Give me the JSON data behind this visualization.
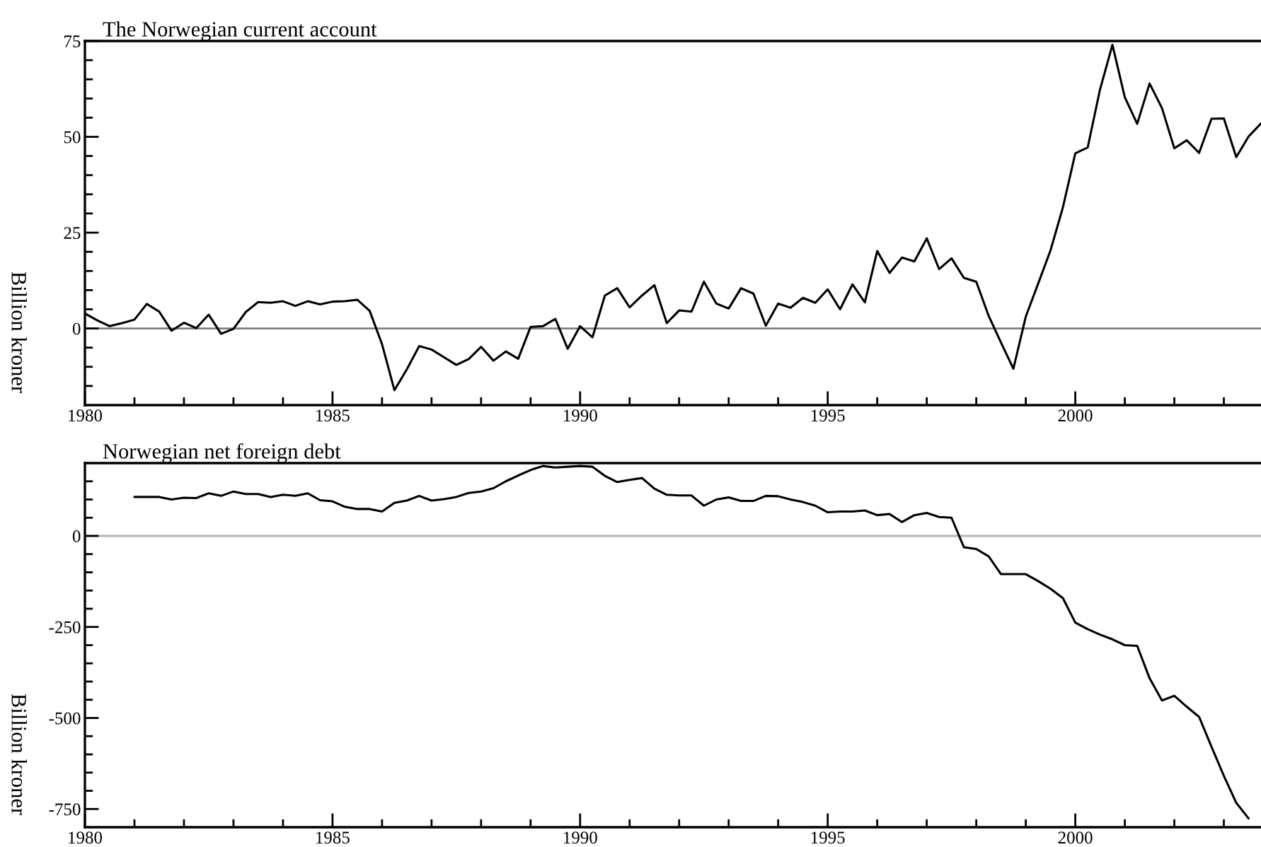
{
  "chart_data": [
    {
      "type": "line",
      "title": "The Norwegian current account",
      "ylabel": "Billion kroner",
      "x": [
        1980,
        1980.25,
        1980.5,
        1980.75,
        1981,
        1981.25,
        1981.5,
        1981.75,
        1982,
        1982.25,
        1982.5,
        1982.75,
        1983,
        1983.25,
        1983.5,
        1983.75,
        1984,
        1984.25,
        1984.5,
        1984.75,
        1985,
        1985.25,
        1985.5,
        1985.75,
        1986,
        1986.25,
        1986.5,
        1986.75,
        1987,
        1987.25,
        1987.5,
        1987.75,
        1988,
        1988.25,
        1988.5,
        1988.75,
        1989,
        1989.25,
        1989.5,
        1989.75,
        1990,
        1990.25,
        1990.5,
        1990.75,
        1991,
        1991.25,
        1991.5,
        1991.75,
        1992,
        1992.25,
        1992.5,
        1992.75,
        1993,
        1993.25,
        1993.5,
        1993.75,
        1994,
        1994.25,
        1994.5,
        1994.75,
        1995,
        1995.25,
        1995.5,
        1995.75,
        1996,
        1996.25,
        1996.5,
        1996.75,
        1997,
        1997.25,
        1997.5,
        1997.75,
        1998,
        1998.25,
        1998.5,
        1998.75,
        1999,
        1999.25,
        1999.5,
        1999.75,
        2000,
        2000.25,
        2000.5,
        2000.75,
        2001,
        2001.25,
        2001.5,
        2001.75,
        2002,
        2002.25,
        2002.5,
        2002.75,
        2003,
        2003.25,
        2003.5,
        2003.75
      ],
      "series": [
        {
          "color": "#000000",
          "values": [
            3.9,
            2.1,
            0.6,
            1.4,
            2.3,
            6.4,
            4.4,
            -0.6,
            1.5,
            0.1,
            3.6,
            -1.4,
            -0.1,
            4.3,
            6.9,
            6.7,
            7.1,
            5.9,
            7.1,
            6.3,
            7.0,
            7.1,
            7.5,
            4.6,
            -4.1,
            -16.1,
            -10.7,
            -4.6,
            -5.5,
            -7.5,
            -9.5,
            -8.0,
            -4.8,
            -8.4,
            -6.0,
            -7.9,
            0.4,
            0.6,
            2.5,
            -5.3,
            0.6,
            -2.3,
            8.6,
            10.5,
            5.5,
            8.6,
            11.3,
            1.4,
            4.7,
            4.4,
            12.2,
            6.5,
            5.2,
            10.5,
            9.1,
            0.7,
            6.5,
            5.4,
            8.0,
            6.7,
            10.2,
            5.0,
            11.5,
            6.8,
            20.2,
            14.5,
            18.5,
            17.5,
            23.5,
            15.5,
            18.3,
            13.2,
            12.2,
            3.3,
            -3.7,
            -10.5,
            3.1,
            11.7,
            20.4,
            31.6,
            45.7,
            47.2,
            62.4,
            74.0,
            60.3,
            53.4,
            63.9,
            57.5,
            47.0,
            49.1,
            45.8,
            54.7,
            54.8,
            44.7,
            50.1,
            53.5
          ]
        }
      ],
      "xlim": [
        1980,
        2003.75
      ],
      "ylim": [
        -20,
        75
      ],
      "xticks": [
        1980,
        {
          "value": 1981,
          "label": null
        },
        {
          "value": 1982,
          "label": null
        },
        {
          "value": 1983,
          "label": null
        },
        {
          "value": 1984,
          "label": null
        },
        1985,
        {
          "value": 1986,
          "label": null
        },
        {
          "value": 1987,
          "label": null
        },
        {
          "value": 1988,
          "label": null
        },
        {
          "value": 1989,
          "label": null
        },
        1990,
        {
          "value": 1991,
          "label": null
        },
        {
          "value": 1992,
          "label": null
        },
        {
          "value": 1993,
          "label": null
        },
        {
          "value": 1994,
          "label": null
        },
        1995,
        {
          "value": 1996,
          "label": null
        },
        {
          "value": 1997,
          "label": null
        },
        {
          "value": 1998,
          "label": null
        },
        {
          "value": 1999,
          "label": null
        },
        2000,
        {
          "value": 2001,
          "label": null
        },
        {
          "value": 2002,
          "label": null
        },
        {
          "value": 2003,
          "label": null
        }
      ],
      "yticks": [
        {
          "value": -15,
          "label": null
        },
        {
          "value": -10,
          "label": null
        },
        {
          "value": -5,
          "label": null
        },
        0,
        {
          "value": 5,
          "label": null
        },
        {
          "value": 10,
          "label": null
        },
        {
          "value": 15,
          "label": null
        },
        {
          "value": 20,
          "label": null
        },
        25,
        {
          "value": 30,
          "label": null
        },
        {
          "value": 35,
          "label": null
        },
        {
          "value": 40,
          "label": null
        },
        {
          "value": 45,
          "label": null
        },
        50,
        {
          "value": 55,
          "label": null
        },
        {
          "value": 60,
          "label": null
        },
        {
          "value": 65,
          "label": null
        },
        {
          "value": 70,
          "label": null
        },
        75
      ],
      "ref_lines": [
        {
          "axis": "y",
          "value": 0,
          "color": "#808080"
        }
      ]
    },
    {
      "type": "line",
      "title": "Norwegian net foreign debt",
      "ylabel": "Billion kroner",
      "x": [
        1981,
        1981.25,
        1981.5,
        1981.75,
        1982,
        1982.25,
        1982.5,
        1982.75,
        1983,
        1983.25,
        1983.5,
        1983.75,
        1984,
        1984.25,
        1984.5,
        1984.75,
        1985,
        1985.25,
        1985.5,
        1985.75,
        1986,
        1986.25,
        1986.5,
        1986.75,
        1987,
        1987.25,
        1987.5,
        1987.75,
        1988,
        1988.25,
        1988.5,
        1988.75,
        1989,
        1989.25,
        1989.5,
        1989.75,
        1990,
        1990.25,
        1990.5,
        1990.75,
        1991,
        1991.25,
        1991.5,
        1991.75,
        1992,
        1992.25,
        1992.5,
        1992.75,
        1993,
        1993.25,
        1993.5,
        1993.75,
        1994,
        1994.25,
        1994.5,
        1994.75,
        1995,
        1995.25,
        1995.5,
        1995.75,
        1996,
        1996.25,
        1996.5,
        1996.75,
        1997,
        1997.25,
        1997.5,
        1997.75,
        1998,
        1998.25,
        1998.5,
        1998.75,
        1999,
        1999.25,
        1999.5,
        1999.75,
        2000,
        2000.25,
        2000.5,
        2000.75,
        2001,
        2001.25,
        2001.5,
        2001.75,
        2002,
        2002.25,
        2002.5,
        2002.75,
        2003,
        2003.25,
        2003.5
      ],
      "series": [
        {
          "color": "#000000",
          "values": [
            107,
            107,
            107,
            100,
            105,
            104,
            117,
            110,
            122,
            115,
            115,
            107,
            113,
            110,
            117,
            98,
            95,
            80,
            74,
            74,
            67,
            91,
            97,
            110,
            97,
            101,
            107,
            118,
            122,
            131,
            150,
            166,
            181,
            192,
            188,
            190,
            192,
            190,
            165,
            148,
            154,
            159,
            130,
            113,
            111,
            111,
            83,
            100,
            106,
            96,
            96,
            110,
            109,
            100,
            93,
            83,
            65,
            67,
            67,
            70,
            57,
            60,
            38,
            57,
            63,
            52,
            50,
            -31,
            -36,
            -56,
            -105,
            -105,
            -105,
            -124,
            -145,
            -171,
            -238,
            -256,
            -271,
            -284,
            -300,
            -302,
            -391,
            -452,
            -439,
            -469,
            -497,
            -579,
            -659,
            -733,
            -776
          ]
        }
      ],
      "xlim": [
        1980,
        2003.75
      ],
      "ylim": [
        -800,
        200
      ],
      "xticks": [
        1980,
        {
          "value": 1981,
          "label": null
        },
        {
          "value": 1982,
          "label": null
        },
        {
          "value": 1983,
          "label": null
        },
        {
          "value": 1984,
          "label": null
        },
        1985,
        {
          "value": 1986,
          "label": null
        },
        {
          "value": 1987,
          "label": null
        },
        {
          "value": 1988,
          "label": null
        },
        {
          "value": 1989,
          "label": null
        },
        1990,
        {
          "value": 1991,
          "label": null
        },
        {
          "value": 1992,
          "label": null
        },
        {
          "value": 1993,
          "label": null
        },
        {
          "value": 1994,
          "label": null
        },
        1995,
        {
          "value": 1996,
          "label": null
        },
        {
          "value": 1997,
          "label": null
        },
        {
          "value": 1998,
          "label": null
        },
        {
          "value": 1999,
          "label": null
        },
        2000,
        {
          "value": 2001,
          "label": null
        },
        {
          "value": 2002,
          "label": null
        },
        {
          "value": 2003,
          "label": null
        }
      ],
      "yticks": [
        -750,
        {
          "value": -700,
          "label": null
        },
        {
          "value": -650,
          "label": null
        },
        {
          "value": -600,
          "label": null
        },
        {
          "value": -550,
          "label": null
        },
        -500,
        {
          "value": -450,
          "label": null
        },
        {
          "value": -400,
          "label": null
        },
        {
          "value": -350,
          "label": null
        },
        {
          "value": -300,
          "label": null
        },
        -250,
        {
          "value": -200,
          "label": null
        },
        {
          "value": -150,
          "label": null
        },
        {
          "value": -100,
          "label": null
        },
        {
          "value": -50,
          "label": null
        },
        0,
        {
          "value": 50,
          "label": null
        },
        {
          "value": 100,
          "label": null
        },
        {
          "value": 150,
          "label": null
        }
      ],
      "ref_lines": [
        {
          "axis": "y",
          "value": 0,
          "color": "#b4b4b4"
        }
      ]
    }
  ]
}
